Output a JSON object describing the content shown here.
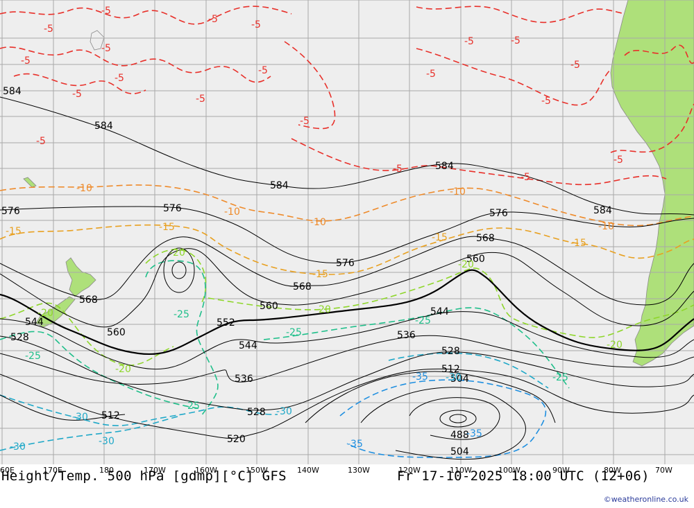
{
  "title": {
    "left": "Height/Temp. 500 hPa [gdmp][°C] GFS",
    "right": "Fr 17-10-2025 18:00 UTC (12+06)"
  },
  "credit": "©weatheronline.co.uk",
  "longitude_labels": [
    "60E",
    "170E",
    "180",
    "170W",
    "160W",
    "150W",
    "140W",
    "130W",
    "120W",
    "110W",
    "100W",
    "90W",
    "80W",
    "70W"
  ],
  "colors": {
    "ocean": "#eeeeee",
    "land": "#aee07a",
    "height_contour": "#000000",
    "temp_minus5": "#e8302a",
    "temp_minus10": "#ee8a2a",
    "temp_minus15": "#e8a020",
    "temp_minus20": "#8ed62a",
    "temp_minus25": "#1fbf8a",
    "temp_minus30": "#1fa8c8",
    "temp_minus35": "#1f8fe0"
  },
  "height_labels": {
    "h584_a": "584",
    "h584_b": "584",
    "h584_c": "584",
    "h584_d": "584",
    "h584_e": "584",
    "h576_a": "576",
    "h576_b": "576",
    "h576_c": "576",
    "h576_d": "576",
    "h568_a": "568",
    "h568_b": "568",
    "h568_c": "568",
    "h560_a": "560",
    "h560_b": "560",
    "h560_c": "560",
    "h552_a": "552",
    "h544_a": "544",
    "h544_b": "544",
    "h544_c": "544",
    "h536_a": "536",
    "h536_b": "536",
    "h528_a": "528",
    "h528_b": "528",
    "h528_c": "528",
    "h520_a": "520",
    "h512_a": "512",
    "h512_b": "512",
    "h504_a": "504",
    "h504_b": "504",
    "h488_a": "488"
  },
  "temp_labels": {
    "t5_a": "-5",
    "t5_b": "-5",
    "t5_c": "-5",
    "t5_d": "-5",
    "t5_e": "-5",
    "t5_f": "-5",
    "t5_g": "-5",
    "t5_h": "-5",
    "t5_i": "-5",
    "t5_j": "-5",
    "t5_k": "-5",
    "t5_l": "-5",
    "t5_m": "-5",
    "t5_n": "-5",
    "t5_o": "-5",
    "t5_p": "-5",
    "t5_q": "-5",
    "t5_r": "-5",
    "t5_s": "-5",
    "t5_t": "-5",
    "t10_a": "-10",
    "t10_b": "-10",
    "t10_c": "-10",
    "t10_d": "-10",
    "t10_e": "-10",
    "t15_a": "-15",
    "t15_b": "-15",
    "t15_c": "-15",
    "t15_d": "-15",
    "t15_e": "-15",
    "t20_a": "-20",
    "t20_b": "-20",
    "t20_c": "-20",
    "t20_d": "-20",
    "t20_e": "-20",
    "t20_f": "-20",
    "t25_a": "-25",
    "t25_b": "-25",
    "t25_c": "-25",
    "t25_d": "-25",
    "t25_e": "-25",
    "t25_f": "-25",
    "t30_a": "-30",
    "t30_b": "-30",
    "t30_c": "-30",
    "t30_d": "-30",
    "t30_e": "-30",
    "t35_a": "-35",
    "t35_b": "-35",
    "t35_c": "-35"
  }
}
